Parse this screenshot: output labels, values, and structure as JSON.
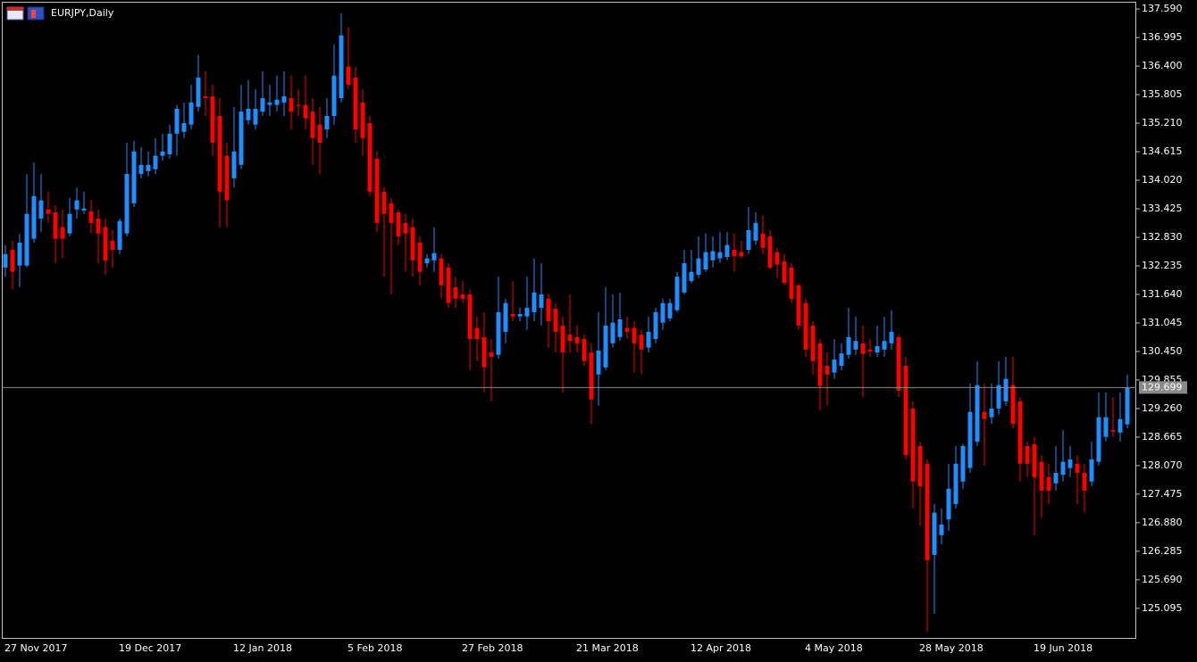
{
  "chart_data": {
    "type": "candlestick",
    "title": "EURJPY,Daily",
    "categories": [
      "27 Nov 2017",
      null,
      null,
      null,
      null,
      null,
      null,
      null,
      null,
      null,
      null,
      null,
      null,
      null,
      null,
      null,
      "19 Dec 2017",
      null,
      null,
      null,
      null,
      null,
      null,
      null,
      null,
      null,
      null,
      null,
      null,
      null,
      null,
      null,
      "12 Jan 2018",
      null,
      null,
      null,
      null,
      null,
      null,
      null,
      null,
      null,
      null,
      null,
      null,
      null,
      null,
      null,
      "5 Feb 2018",
      null,
      null,
      null,
      null,
      null,
      null,
      null,
      null,
      null,
      null,
      null,
      null,
      null,
      null,
      null,
      "27 Feb 2018",
      null,
      null,
      null,
      null,
      null,
      null,
      null,
      null,
      null,
      null,
      null,
      null,
      null,
      null,
      null,
      "21 Mar 2018",
      null,
      null,
      null,
      null,
      null,
      null,
      null,
      null,
      null,
      null,
      null,
      null,
      null,
      null,
      null,
      "12 Apr 2018",
      null,
      null,
      null,
      null,
      null,
      null,
      null,
      null,
      null,
      null,
      null,
      null,
      null,
      null,
      null,
      "4 May 2018",
      null,
      null,
      null,
      null,
      null,
      null,
      null,
      null,
      null,
      null,
      null,
      null,
      null,
      null,
      null,
      "28 May 2018",
      null,
      null,
      null,
      null,
      null,
      null,
      null,
      null,
      null,
      null,
      null,
      null,
      null,
      null,
      null,
      "19 Jun 2018",
      null,
      null,
      null,
      null,
      null,
      null,
      null,
      null,
      null,
      null,
      null,
      null,
      null
    ],
    "open": [
      132.2,
      132.57,
      132.24,
      132.24,
      132.8,
      133.22,
      133.41,
      133.35,
      133.04,
      132.91,
      133.41,
      133.39,
      133.37,
      133.22,
      133.04,
      132.76,
      132.57,
      132.91,
      133.54,
      134.15,
      134.21,
      134.25,
      134.53,
      134.56,
      134.99,
      135.03,
      135.18,
      135.55,
      135.77,
      135.77,
      135.36,
      134.53,
      134.06,
      134.34,
      135.27,
      135.18,
      135.45,
      135.59,
      135.59,
      135.64,
      135.73,
      135.59,
      135.59,
      135.45,
      135.18,
      135.08,
      135.36,
      135.73,
      136.39,
      136.16,
      135.64,
      135.21,
      134.47,
      133.78,
      133.54,
      133.35,
      133.13,
      133.04,
      132.72,
      132.29,
      132.35,
      132.39,
      132.2,
      131.79,
      131.64,
      131.64,
      130.94,
      130.75,
      130.43,
      130.38,
      130.86,
      131.23,
      131.18,
      131.18,
      131.27,
      131.36,
      131.55,
      131.34,
      130.99,
      130.8,
      130.75,
      130.71,
      130.43,
      129.97,
      130.12,
      130.62,
      130.75,
      130.94,
      130.94,
      130.8,
      130.53,
      130.71,
      131.05,
      131.14,
      131.31,
      131.68,
      131.92,
      132.05,
      132.16,
      132.35,
      132.39,
      132.42,
      132.57,
      132.52,
      132.57,
      132.76,
      132.91,
      132.85,
      132.52,
      132.33,
      132.2,
      131.83,
      131.46,
      130.99,
      130.62,
      130.15,
      130.01,
      130.15,
      130.38,
      130.49,
      130.62,
      130.49,
      130.43,
      130.49,
      130.62,
      130.75,
      130.15,
      129.26,
      128.48,
      128.11,
      126.21,
      126.62,
      126.95,
      127.27,
      127.74,
      128.02,
      128.57,
      129.19,
      129.08,
      129.26,
      129.41,
      129.75,
      129.41,
      128.48,
      128.52,
      128.15,
      127.83,
      127.7,
      127.88,
      128.02,
      128.11,
      127.92,
      127.74,
      128.15,
      128.67,
      128.81,
      128.76,
      128.93
    ],
    "high": [
      132.67,
      132.76,
      132.9,
      134.15,
      134.39,
      134.15,
      133.78,
      133.5,
      133.41,
      133.65,
      133.87,
      133.78,
      133.6,
      133.41,
      133.22,
      132.98,
      133.22,
      134.8,
      134.84,
      134.71,
      134.62,
      134.9,
      134.99,
      135.18,
      135.59,
      135.64,
      136.01,
      136.63,
      136.29,
      136.01,
      135.73,
      134.8,
      135.55,
      136.01,
      136.11,
      135.92,
      136.29,
      136.01,
      136.2,
      136.29,
      136.2,
      135.92,
      136.2,
      135.73,
      135.55,
      135.73,
      136.85,
      137.5,
      137.22,
      136.39,
      135.92,
      135.36,
      134.62,
      133.87,
      133.65,
      133.41,
      133.32,
      133.22,
      132.85,
      132.48,
      133.04,
      132.48,
      132.29,
      132.01,
      131.92,
      131.74,
      131.18,
      131.27,
      130.71,
      132.01,
      131.55,
      131.92,
      131.36,
      132.01,
      132.39,
      132.29,
      131.64,
      131.46,
      131.18,
      131.64,
      130.99,
      130.8,
      130.62,
      131.27,
      131.79,
      131.64,
      131.68,
      131.18,
      131.08,
      130.9,
      131.18,
      131.36,
      131.55,
      131.55,
      132.11,
      132.57,
      132.57,
      132.85,
      132.91,
      132.85,
      132.94,
      132.94,
      132.91,
      132.76,
      133.46,
      133.35,
      133.28,
      132.98,
      132.61,
      132.48,
      132.29,
      131.87,
      131.55,
      131.08,
      130.71,
      130.43,
      130.71,
      130.62,
      131.36,
      131.18,
      130.99,
      130.71,
      130.99,
      131.18,
      131.31,
      130.8,
      130.34,
      129.41,
      128.57,
      128.2,
      127.27,
      127.18,
      128.11,
      128.48,
      128.52,
      129.78,
      130.25,
      129.78,
      129.78,
      130.25,
      130.34,
      130.34,
      129.5,
      128.57,
      128.67,
      128.29,
      128.11,
      128.48,
      128.81,
      128.48,
      128.29,
      128.11,
      128.57,
      129.6,
      129.6,
      129.5,
      129.6,
      129.97
    ],
    "low": [
      132.01,
      131.74,
      131.79,
      132.2,
      132.72,
      132.94,
      133.13,
      132.29,
      132.39,
      132.85,
      133.22,
      133.32,
      132.91,
      132.29,
      132.05,
      132.2,
      132.48,
      132.85,
      133.46,
      134.06,
      134.1,
      134.15,
      134.43,
      134.47,
      134.53,
      134.9,
      135.08,
      135.45,
      135.36,
      134.53,
      133.04,
      133.04,
      133.87,
      134.25,
      135.18,
      135.08,
      135.36,
      135.36,
      135.45,
      135.36,
      135.08,
      135.36,
      135.08,
      134.34,
      134.15,
      134.9,
      135.18,
      135.64,
      135.92,
      134.8,
      134.53,
      133.69,
      132.94,
      132.01,
      131.64,
      132.67,
      132.11,
      132.01,
      131.83,
      132.2,
      132.11,
      131.55,
      131.36,
      131.36,
      131.46,
      130.06,
      130.25,
      129.6,
      129.41,
      130.3,
      130.62,
      131.08,
      131.08,
      130.9,
      131.08,
      130.99,
      130.53,
      130.43,
      129.6,
      130.43,
      130.43,
      130.15,
      128.94,
      129.32,
      130.06,
      130.53,
      130.67,
      130.71,
      130.01,
      129.97,
      130.43,
      130.62,
      130.9,
      131.08,
      131.27,
      131.64,
      131.87,
      131.98,
      132.11,
      132.2,
      132.29,
      132.35,
      132.11,
      132.39,
      132.48,
      132.67,
      132.48,
      132.16,
      131.98,
      131.83,
      131.46,
      130.9,
      130.34,
      129.97,
      129.22,
      129.32,
      129.88,
      130.06,
      130.3,
      130.38,
      129.5,
      130.34,
      130.34,
      130.34,
      130.49,
      129.5,
      128.2,
      127.18,
      126.81,
      124.61,
      124.98,
      126.43,
      126.71,
      127.18,
      127.59,
      127.92,
      128.48,
      128.07,
      128.94,
      129.13,
      129.32,
      128.85,
      127.74,
      127.83,
      126.62,
      126.99,
      127.27,
      127.55,
      127.74,
      127.83,
      127.27,
      127.09,
      127.64,
      128.07,
      128.57,
      128.67,
      128.57,
      128.85
    ],
    "close": [
      132.48,
      132.11,
      132.72,
      133.32,
      133.69,
      133.6,
      133.32,
      132.8,
      132.8,
      133.32,
      133.6,
      133.43,
      133.13,
      132.91,
      132.35,
      132.57,
      133.17,
      134.15,
      134.62,
      134.34,
      134.34,
      134.53,
      134.62,
      134.99,
      135.51,
      135.21,
      135.64,
      136.16,
      135.73,
      134.8,
      133.78,
      133.6,
      134.62,
      135.45,
      135.51,
      135.51,
      135.73,
      135.64,
      135.7,
      135.77,
      135.45,
      135.57,
      135.31,
      134.9,
      134.8,
      135.36,
      136.2,
      137.04,
      136.01,
      135.08,
      134.9,
      133.78,
      133.13,
      133.32,
      133.13,
      132.85,
      132.91,
      132.35,
      132.11,
      132.39,
      132.5,
      131.83,
      131.46,
      131.55,
      131.55,
      130.71,
      130.71,
      130.12,
      130.34,
      131.27,
      131.46,
      131.18,
      131.23,
      131.36,
      131.68,
      131.64,
      131.08,
      130.86,
      130.43,
      130.67,
      130.62,
      130.25,
      129.45,
      130.47,
      130.99,
      131.05,
      131.12,
      130.86,
      130.62,
      130.49,
      130.86,
      131.27,
      131.46,
      131.46,
      132.01,
      132.29,
      132.11,
      132.39,
      132.52,
      132.54,
      132.52,
      132.67,
      132.44,
      132.44,
      132.98,
      133.13,
      132.61,
      132.2,
      132.26,
      131.88,
      131.55,
      130.99,
      130.49,
      130.25,
      129.73,
      129.97,
      130.28,
      130.41,
      130.75,
      130.67,
      130.4,
      130.45,
      130.56,
      130.67,
      130.86,
      129.63,
      128.29,
      127.74,
      127.64,
      126.1,
      127.09,
      126.84,
      127.59,
      128.11,
      128.48,
      129.19,
      129.75,
      129.04,
      129.26,
      129.75,
      129.88,
      128.94,
      128.11,
      128.11,
      127.83,
      127.55,
      127.55,
      127.92,
      128.15,
      128.2,
      127.92,
      127.55,
      128.2,
      129.08,
      129.08,
      128.78,
      129.04,
      129.69
    ],
    "up_color": "#1e8fff",
    "down_color": "#ff0000",
    "current_price": 129.699,
    "ylim": [
      124.46,
      137.74
    ],
    "yticks": [
      {
        "value": 137.59,
        "label": "137.590"
      },
      {
        "value": 136.995,
        "label": "136.995"
      },
      {
        "value": 136.4,
        "label": "136.400"
      },
      {
        "value": 135.805,
        "label": "135.805"
      },
      {
        "value": 135.21,
        "label": "135.210"
      },
      {
        "value": 134.615,
        "label": "134.615"
      },
      {
        "value": 134.02,
        "label": "134.020"
      },
      {
        "value": 133.425,
        "label": "133.425"
      },
      {
        "value": 132.83,
        "label": "132.830"
      },
      {
        "value": 132.235,
        "label": "132.235"
      },
      {
        "value": 131.64,
        "label": "131.640"
      },
      {
        "value": 131.045,
        "label": "131.045"
      },
      {
        "value": 130.45,
        "label": "130.450"
      },
      {
        "value": 129.855,
        "label": "129.855"
      },
      {
        "value": 129.26,
        "label": "129.260"
      },
      {
        "value": 128.665,
        "label": "128.665"
      },
      {
        "value": 128.07,
        "label": "128.070"
      },
      {
        "value": 127.475,
        "label": "127.475"
      },
      {
        "value": 126.88,
        "label": "126.880"
      },
      {
        "value": 126.285,
        "label": "126.285"
      },
      {
        "value": 125.69,
        "label": "125.690"
      },
      {
        "value": 125.095,
        "label": "125.095"
      }
    ],
    "grid": false
  }
}
